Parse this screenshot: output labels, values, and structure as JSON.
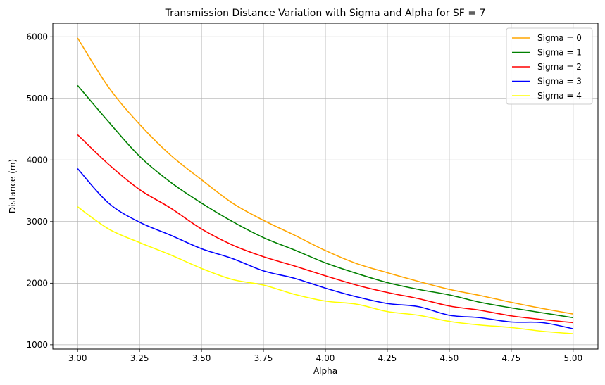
{
  "chart_data": {
    "type": "line",
    "title": "Transmission Distance Variation with Sigma and Alpha for SF = 7",
    "xlabel": "Alpha",
    "ylabel": "Distance (m)",
    "xlim": [
      2.9,
      5.1
    ],
    "ylim": [
      930,
      6220
    ],
    "x_ticks": [
      "3.00",
      "3.25",
      "3.50",
      "3.75",
      "4.00",
      "4.25",
      "4.50",
      "4.75",
      "5.00"
    ],
    "y_ticks": [
      "1000",
      "2000",
      "3000",
      "4000",
      "5000",
      "6000"
    ],
    "grid": true,
    "legend_position": "top-right",
    "x": [
      3.0,
      3.125,
      3.25,
      3.375,
      3.5,
      3.625,
      3.75,
      3.875,
      4.0,
      4.125,
      4.25,
      4.375,
      4.5,
      4.625,
      4.75,
      4.875,
      5.0
    ],
    "series": [
      {
        "name": "Sigma = 0",
        "color": "#ffa500",
        "values": [
          5980,
          5180,
          4580,
          4080,
          3680,
          3300,
          3020,
          2780,
          2530,
          2320,
          2170,
          2030,
          1900,
          1800,
          1690,
          1590,
          1500
        ]
      },
      {
        "name": "Sigma = 1",
        "color": "#008000",
        "values": [
          5210,
          4620,
          4060,
          3640,
          3300,
          3000,
          2740,
          2540,
          2330,
          2160,
          2010,
          1900,
          1810,
          1690,
          1600,
          1520,
          1440
        ]
      },
      {
        "name": "Sigma = 2",
        "color": "#ff0000",
        "values": [
          4410,
          3930,
          3520,
          3220,
          2880,
          2620,
          2430,
          2280,
          2120,
          1970,
          1850,
          1750,
          1630,
          1560,
          1470,
          1410,
          1360
        ]
      },
      {
        "name": "Sigma = 3",
        "color": "#0000ff",
        "values": [
          3860,
          3300,
          2990,
          2780,
          2560,
          2400,
          2200,
          2080,
          1920,
          1780,
          1670,
          1620,
          1480,
          1440,
          1370,
          1360,
          1260
        ]
      },
      {
        "name": "Sigma = 4",
        "color": "#ffff00",
        "values": [
          3240,
          2880,
          2660,
          2460,
          2240,
          2060,
          1970,
          1820,
          1710,
          1660,
          1540,
          1480,
          1380,
          1320,
          1280,
          1220,
          1180
        ]
      }
    ]
  }
}
